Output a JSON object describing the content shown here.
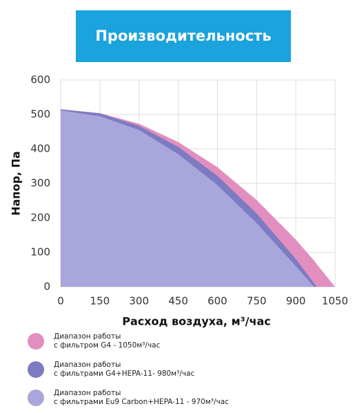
{
  "chart_data": {
    "type": "area",
    "title": "Производительность",
    "x_label": "Расход воздуха, м³/час",
    "y_label": "Напор, Па",
    "x": [
      0,
      150,
      300,
      450,
      600,
      750,
      900,
      970,
      980,
      1050
    ],
    "series": [
      {
        "name": "Диапазон работы\nс фильтром G4 - 1050м³/час",
        "color": "#e28fc0",
        "values": [
          515,
          504,
          473,
          420,
          347,
          252,
          137,
          76,
          66,
          0
        ]
      },
      {
        "name": "Диапазон работы\nс фильтрами G4+HEPA-11- 980м³/час",
        "color": "#7d7bc2",
        "values": [
          515,
          503,
          467,
          406,
          322,
          213,
          81,
          10,
          0,
          null
        ]
      },
      {
        "name": "Диапазон работы\nс фильтрами Eu9 Carbon+HEPA-11 - 970м³/час",
        "color": "#a8a6da",
        "values": [
          512,
          495,
          455,
          385,
          295,
          185,
          60,
          0,
          null,
          null
        ]
      }
    ],
    "xlim": [
      0,
      1050
    ],
    "xticks": [
      0,
      150,
      300,
      450,
      600,
      750,
      900,
      1050
    ],
    "ylim": [
      0,
      600
    ],
    "yticks": [
      0,
      100,
      200,
      300,
      400,
      500,
      600
    ],
    "grid": true
  }
}
